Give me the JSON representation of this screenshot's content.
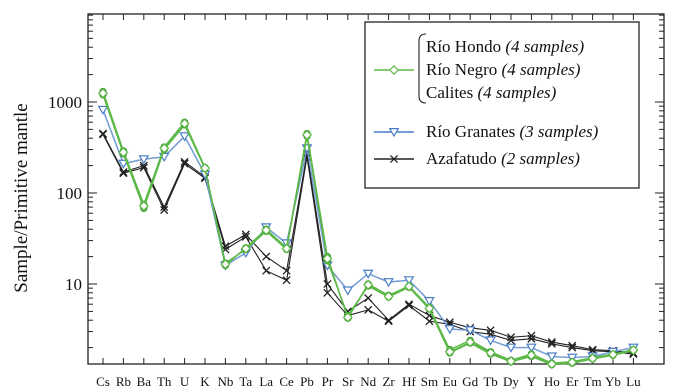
{
  "chart_data": {
    "type": "line",
    "ylabel": "Sample/Primitive mantle",
    "yscale": "log",
    "ylim": [
      1,
      7000
    ],
    "y_ticks": [
      {
        "label": "10",
        "value": 10
      },
      {
        "label": "100",
        "value": 100
      },
      {
        "label": "1000",
        "value": 1000
      }
    ],
    "categories": [
      "Cs",
      "Rb",
      "Ba",
      "Th",
      "U",
      "K",
      "Nb",
      "Ta",
      "La",
      "Ce",
      "Pb",
      "Pr",
      "Sr",
      "Nd",
      "Zr",
      "Hf",
      "Sm",
      "Eu",
      "Gd",
      "Tb",
      "Dy",
      "Y",
      "Ho",
      "Er",
      "Tm",
      "Yb",
      "Lu"
    ],
    "legend": {
      "placement": "top-right",
      "entries": [
        {
          "name": "Río Hondo",
          "note": "(4 samples)"
        },
        {
          "name": "Río Negro",
          "note": "(4 samples)"
        },
        {
          "name": "Calites",
          "note": "(4 samples)"
        },
        {
          "name": "Río Granates",
          "note": "(3 samples)"
        },
        {
          "name": "Azafatudo",
          "note": "(2 samples)"
        }
      ]
    },
    "colors": {
      "green": "#5cb847",
      "green_dark": "#3f9a30",
      "blue": "#4a7ec6",
      "blue_light": "#8fb3e0",
      "black": "#222222",
      "frame": "#222222"
    },
    "series": [
      {
        "group": "green",
        "marker": "circle",
        "values": [
          1300,
          290,
          75,
          320,
          600,
          190,
          16,
          25,
          40,
          25,
          450,
          20,
          4.2,
          10,
          7.5,
          9.5,
          5.5,
          1.9,
          2.4,
          1.8,
          1.45,
          1.7,
          1.35,
          1.4,
          1.55,
          1.7,
          1.9
        ]
      },
      {
        "group": "green",
        "marker": "circle",
        "values": [
          1200,
          270,
          68,
          300,
          560,
          185,
          17,
          24,
          38,
          24,
          420,
          18,
          4.5,
          9.5,
          7.2,
          9.2,
          5.3,
          1.75,
          2.25,
          1.7,
          1.4,
          1.6,
          1.3,
          1.35,
          1.5,
          1.65,
          1.85
        ]
      },
      {
        "group": "green",
        "marker": "diamond",
        "values": [
          1250,
          280,
          72,
          310,
          580,
          188,
          16.5,
          24.5,
          39,
          24.5,
          435,
          19,
          4.3,
          9.8,
          7.3,
          9.4,
          5.4,
          1.8,
          2.3,
          1.75,
          1.42,
          1.65,
          1.32,
          1.38,
          1.52,
          1.68,
          1.88
        ]
      },
      {
        "group": "blue",
        "marker": "triangle-down",
        "values": [
          820,
          210,
          235,
          250,
          420,
          160,
          16,
          22,
          42,
          28,
          310,
          16,
          8.5,
          13,
          10.5,
          11,
          6.5,
          3.2,
          3.1,
          2.4,
          2.0,
          2.0,
          1.6,
          1.55,
          1.6,
          1.8,
          2.0
        ]
      },
      {
        "group": "black",
        "marker": "x",
        "values": [
          450,
          170,
          200,
          70,
          220,
          150,
          26,
          35,
          20,
          14,
          270,
          10,
          5.0,
          7.0,
          4.0,
          6.0,
          4.5,
          3.8,
          3.3,
          3.1,
          2.6,
          2.7,
          2.3,
          2.1,
          1.9,
          1.85,
          1.75
        ]
      },
      {
        "group": "black",
        "marker": "x",
        "values": [
          440,
          165,
          190,
          65,
          210,
          145,
          24,
          33,
          14,
          11,
          250,
          8,
          4.5,
          5.2,
          3.9,
          5.8,
          3.9,
          3.6,
          3.0,
          2.8,
          2.4,
          2.5,
          2.2,
          2.0,
          1.85,
          1.8,
          1.7
        ]
      }
    ]
  }
}
